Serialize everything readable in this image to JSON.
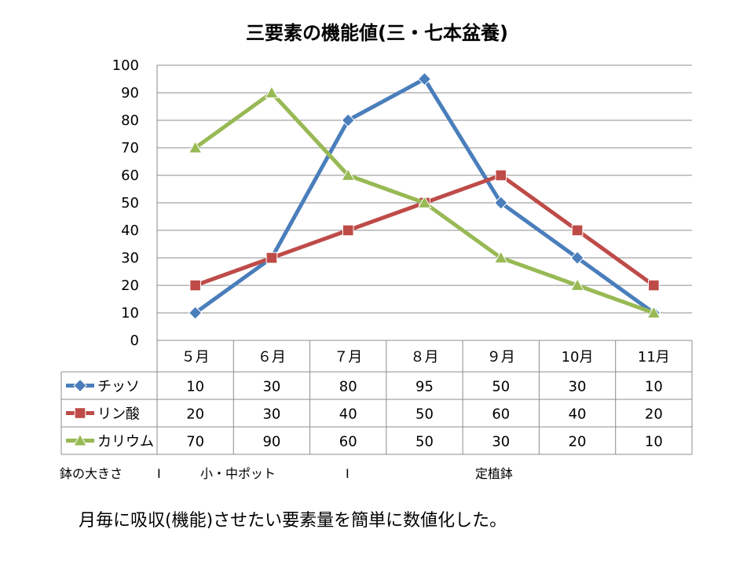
{
  "chart_data": {
    "type": "line",
    "title": "三要素の機能値(三・七本盆養)",
    "categories": [
      "５月",
      "６月",
      "７月",
      "８月",
      "９月",
      "10月",
      "11月"
    ],
    "ylim": [
      0,
      100
    ],
    "yticks": [
      0,
      10,
      20,
      30,
      40,
      50,
      60,
      70,
      80,
      90,
      100
    ],
    "grid": true,
    "legend": "data-table",
    "series": [
      {
        "name": "チッソ",
        "values": [
          10,
          30,
          80,
          95,
          50,
          30,
          10
        ],
        "color": "#4a7ebb",
        "marker": "diamond"
      },
      {
        "name": "リン酸",
        "values": [
          20,
          30,
          40,
          50,
          60,
          40,
          20
        ],
        "color": "#be4b48",
        "marker": "square"
      },
      {
        "name": "カリウム",
        "values": [
          70,
          90,
          60,
          50,
          30,
          20,
          10
        ],
        "color": "#98b954",
        "marker": "triangle"
      }
    ]
  },
  "notes": {
    "pot_size_label": "鉢の大きさ",
    "separator_1": "I",
    "small_medium_pot": "小・中ポット",
    "separator_2": "I",
    "final_pot": "定植鉢"
  },
  "caption": "月毎に吸収(機能)させたい要素量を簡単に数値化した。"
}
